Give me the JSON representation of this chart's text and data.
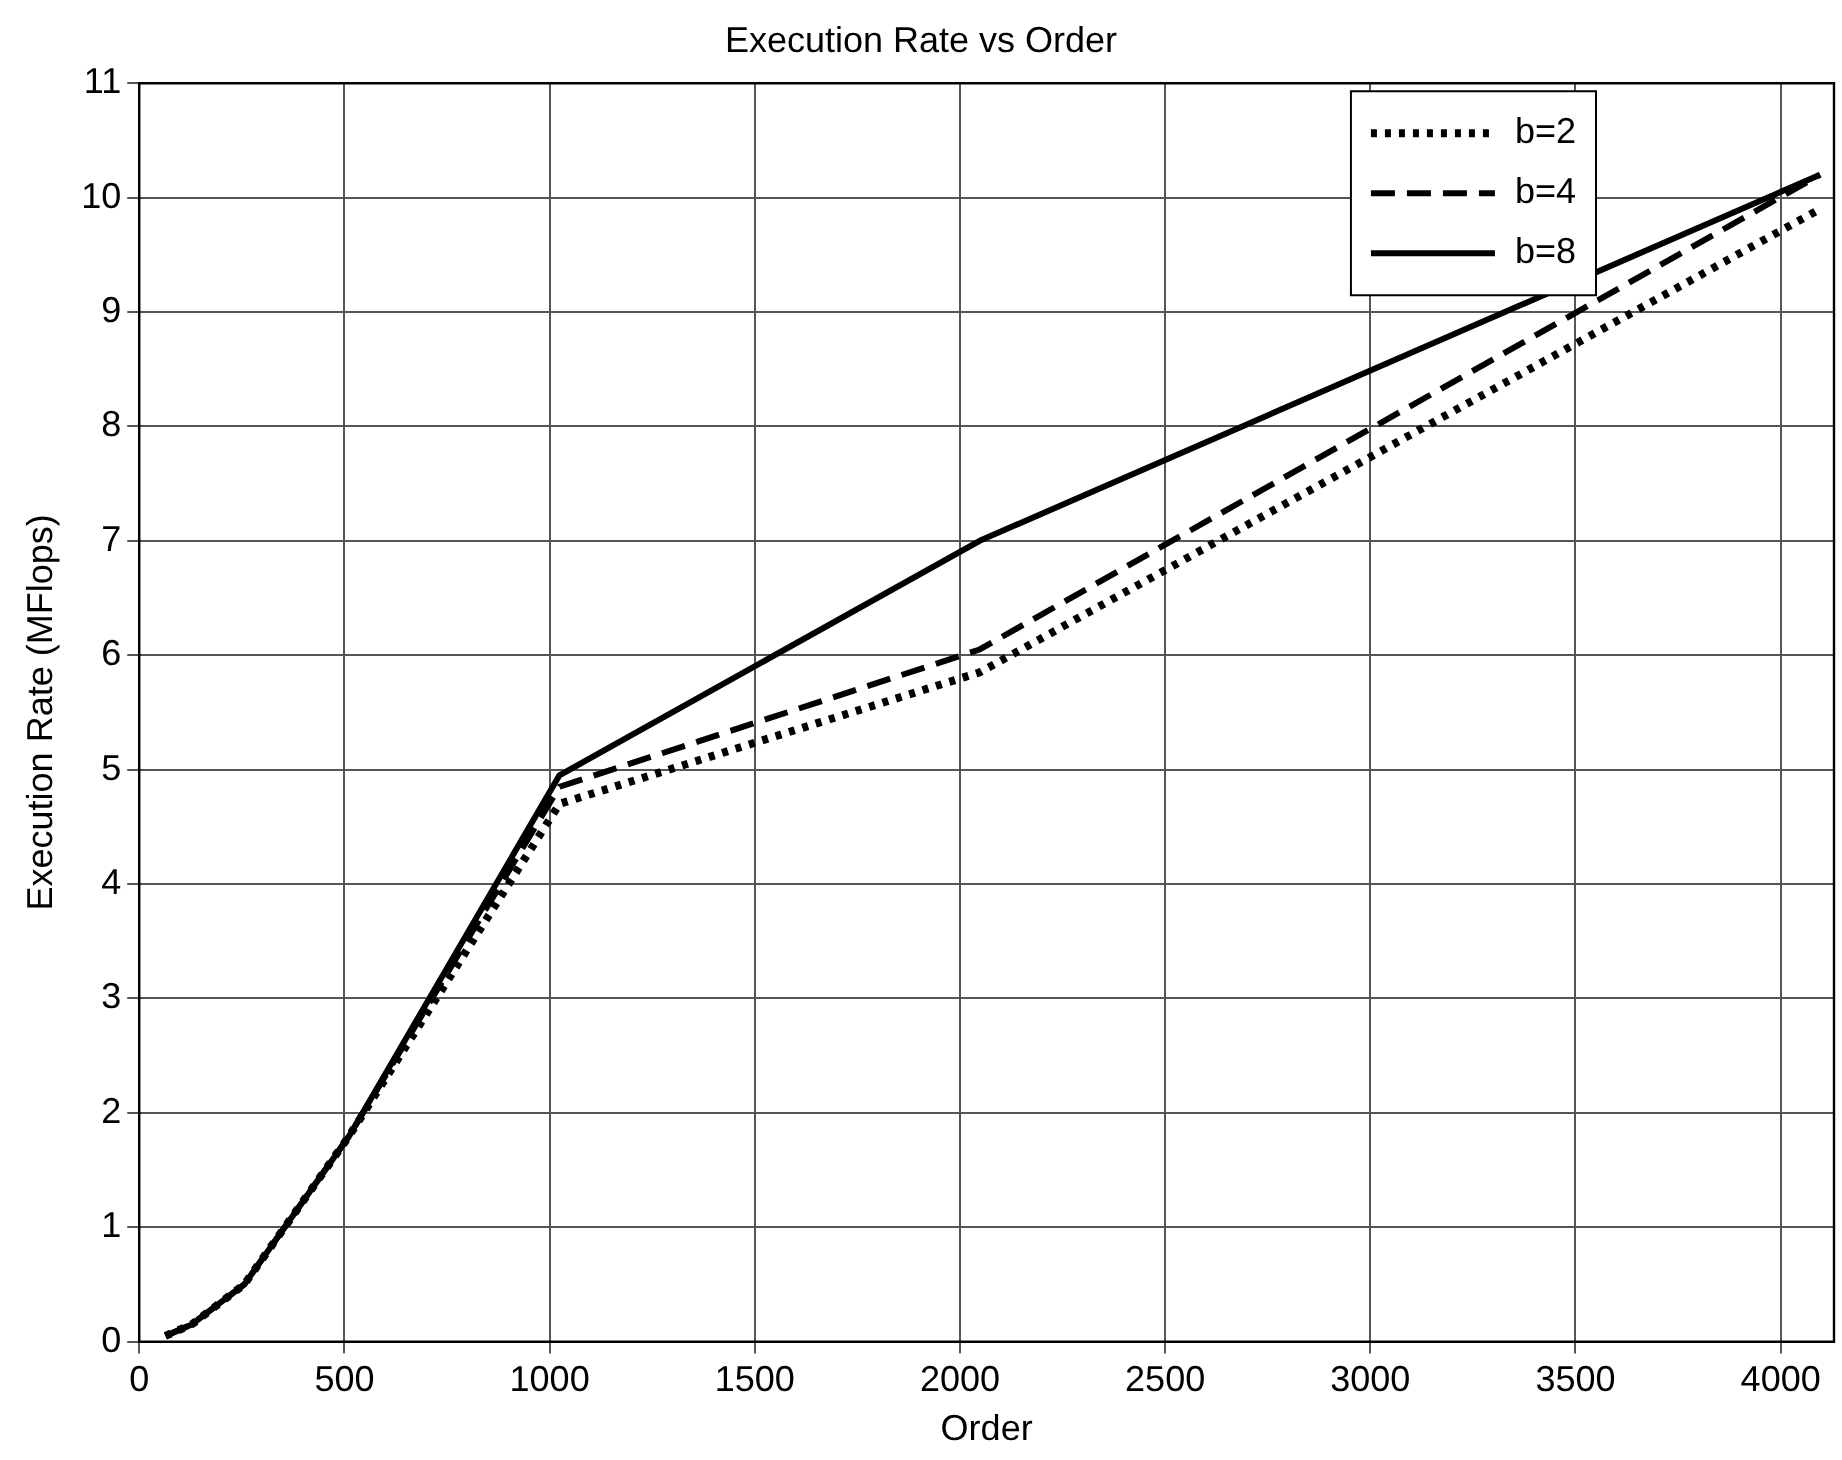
{
  "chart_data": {
    "type": "line",
    "title": "Execution Rate vs Order",
    "xlabel": "Order",
    "ylabel": "Execution Rate (MFlops)",
    "x": [
      64,
      128,
      256,
      512,
      1024,
      2048,
      4096
    ],
    "series": [
      {
        "name": "b=2",
        "color": "#000000",
        "line_style": "dotted",
        "values": [
          0.05,
          0.15,
          0.5,
          1.8,
          4.7,
          5.85,
          9.9
        ]
      },
      {
        "name": "b=4",
        "color": "#000000",
        "line_style": "dashed",
        "values": [
          0.05,
          0.15,
          0.5,
          1.8,
          4.85,
          6.05,
          10.2
        ]
      },
      {
        "name": "b=8",
        "color": "#000000",
        "line_style": "solid",
        "values": [
          0.05,
          0.15,
          0.5,
          1.8,
          4.95,
          7.0,
          10.2
        ]
      }
    ],
    "xlim": [
      0,
      4130
    ],
    "xticks": [
      0,
      500,
      1000,
      1500,
      2000,
      2500,
      3000,
      3500,
      4000
    ],
    "ylim": [
      0,
      11
    ],
    "yticks": [
      0,
      1,
      2,
      3,
      4,
      5,
      6,
      7,
      8,
      9,
      10,
      11
    ],
    "grid": true,
    "legend": "top right",
    "marker": "none"
  }
}
